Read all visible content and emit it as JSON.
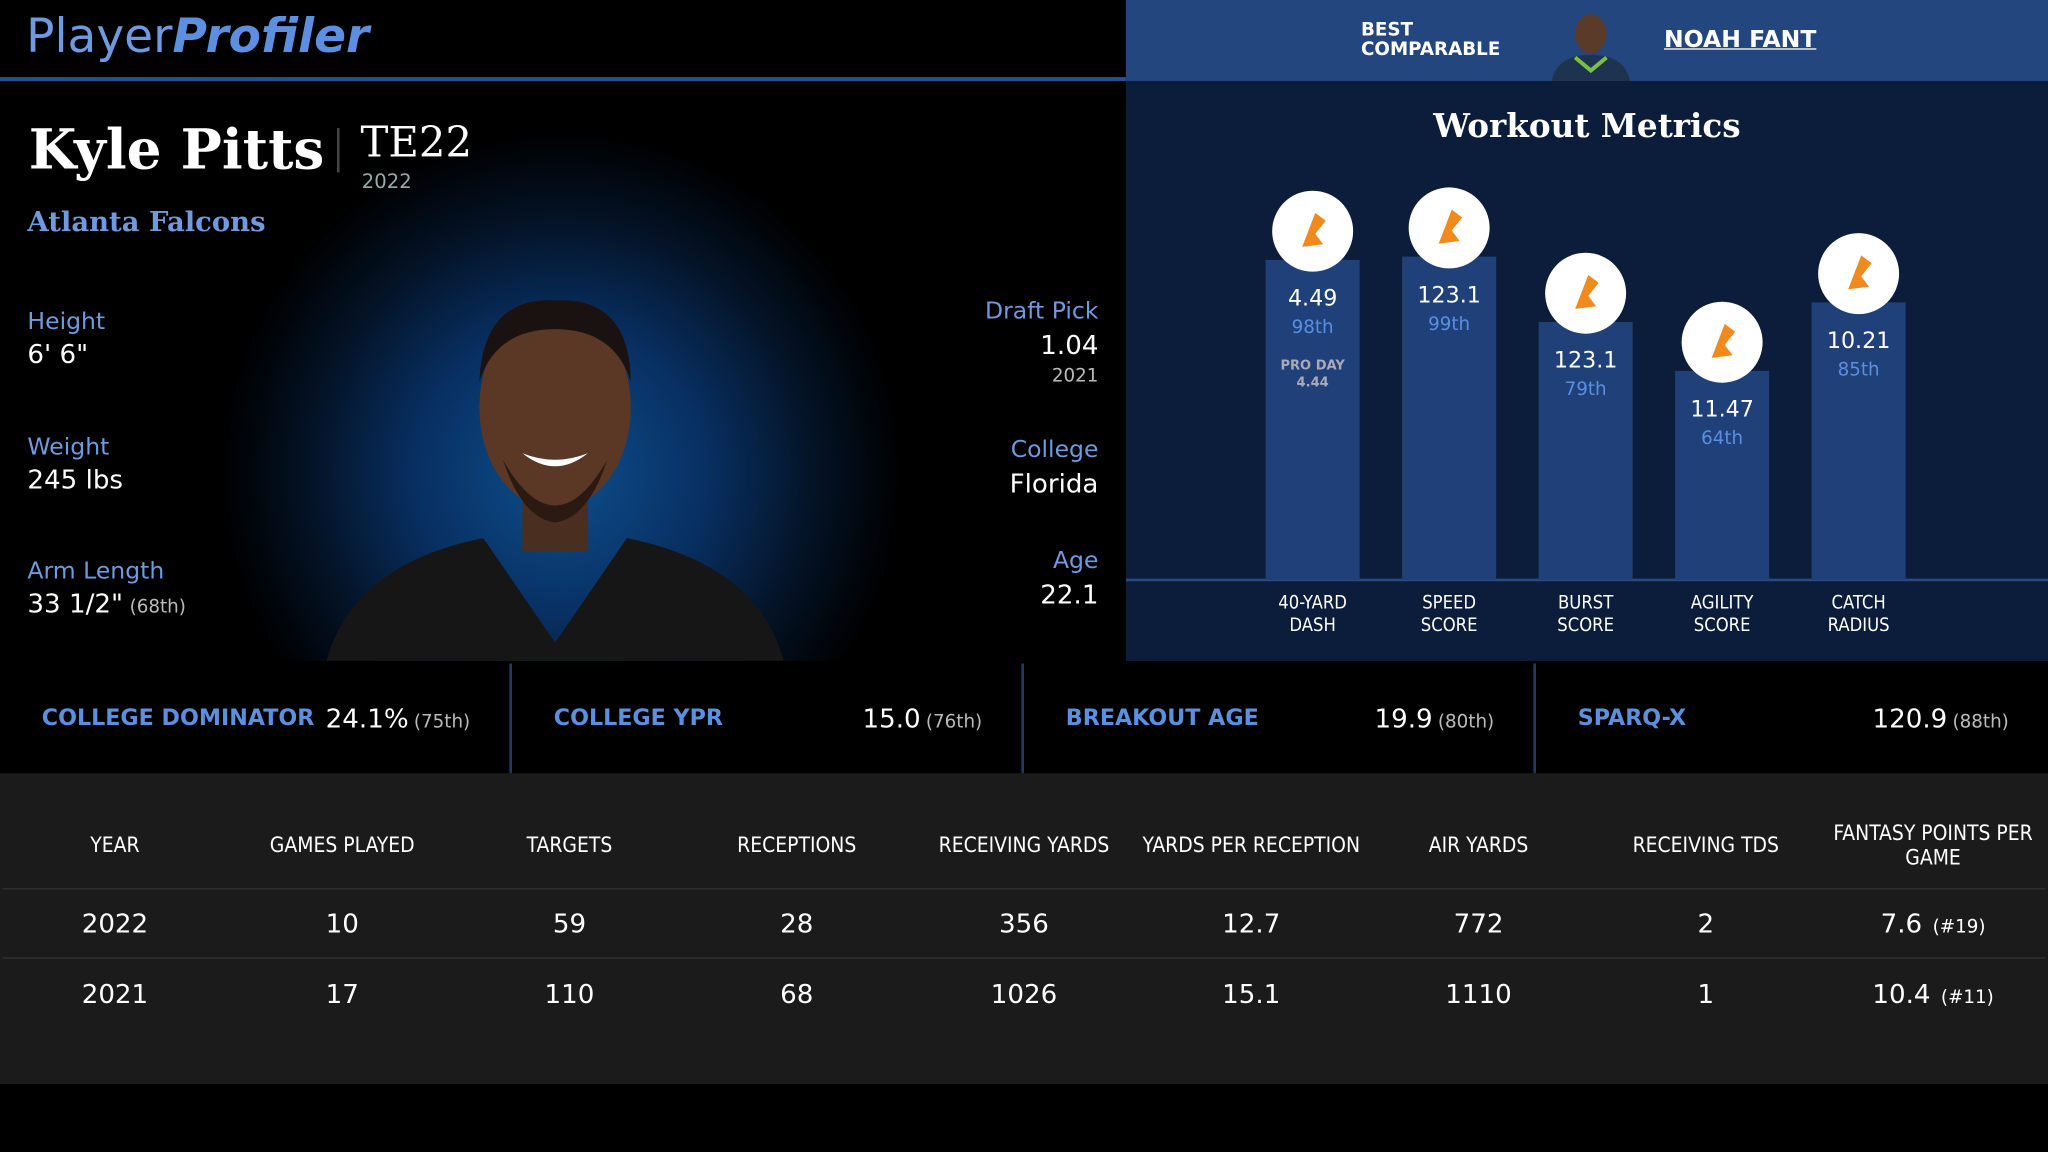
{
  "header": {
    "logo_a": "Player",
    "logo_b": "Profiler",
    "best_comparable_label": "BEST COMPARABLE",
    "best_comparable": "NOAH FANT"
  },
  "player": {
    "name": "Kyle Pitts",
    "position": "TE22",
    "season": "2022",
    "team": "Atlanta Falcons",
    "left": [
      {
        "label": "Height",
        "value": "6' 6\""
      },
      {
        "label": "Weight",
        "value": "245 lbs"
      },
      {
        "label": "Arm Length",
        "value": "33 1/2\"",
        "note": "(68th)"
      }
    ],
    "right": [
      {
        "label": "Draft Pick",
        "value": "1.04",
        "note": "2021"
      },
      {
        "label": "College",
        "value": "Florida"
      },
      {
        "label": "Age",
        "value": "22.1"
      }
    ]
  },
  "workout": {
    "title": "Workout Metrics",
    "metrics": [
      {
        "name": "40-YARD DASH",
        "value": "4.49",
        "percentile": 98,
        "percentile_label": "98th",
        "pro_day_label": "PRO DAY",
        "pro_day": "4.44"
      },
      {
        "name": "SPEED SCORE",
        "value": "123.1",
        "percentile": 99,
        "percentile_label": "99th"
      },
      {
        "name": "BURST SCORE",
        "value": "123.1",
        "percentile": 79,
        "percentile_label": "79th"
      },
      {
        "name": "AGILITY SCORE",
        "value": "11.47",
        "percentile": 64,
        "percentile_label": "64th"
      },
      {
        "name": "CATCH RADIUS",
        "value": "10.21",
        "percentile": 85,
        "percentile_label": "85th"
      }
    ]
  },
  "stats_bar": [
    {
      "label": "COLLEGE DOMINATOR",
      "value": "24.1%",
      "rank": "(75th)"
    },
    {
      "label": "COLLEGE YPR",
      "value": "15.0",
      "rank": "(76th)"
    },
    {
      "label": "BREAKOUT AGE",
      "value": "19.9",
      "rank": "(80th)"
    },
    {
      "label": "SPARQ-X",
      "value": "120.9",
      "rank": "(88th)"
    }
  ],
  "table": {
    "columns": [
      "YEAR",
      "GAMES PLAYED",
      "TARGETS",
      "RECEPTIONS",
      "RECEIVING YARDS",
      "YARDS PER RECEPTION",
      "AIR YARDS",
      "RECEIVING TDS",
      "FANTASY POINTS PER GAME"
    ],
    "rows": [
      [
        "2022",
        "10",
        "59",
        "28",
        "356",
        "12.7",
        "772",
        "2",
        "7.6"
      ],
      [
        "2021",
        "17",
        "110",
        "68",
        "1026",
        "15.1",
        "1110",
        "1",
        "10.4"
      ]
    ],
    "row_ranks": [
      "(#19)",
      "(#11)"
    ]
  }
}
